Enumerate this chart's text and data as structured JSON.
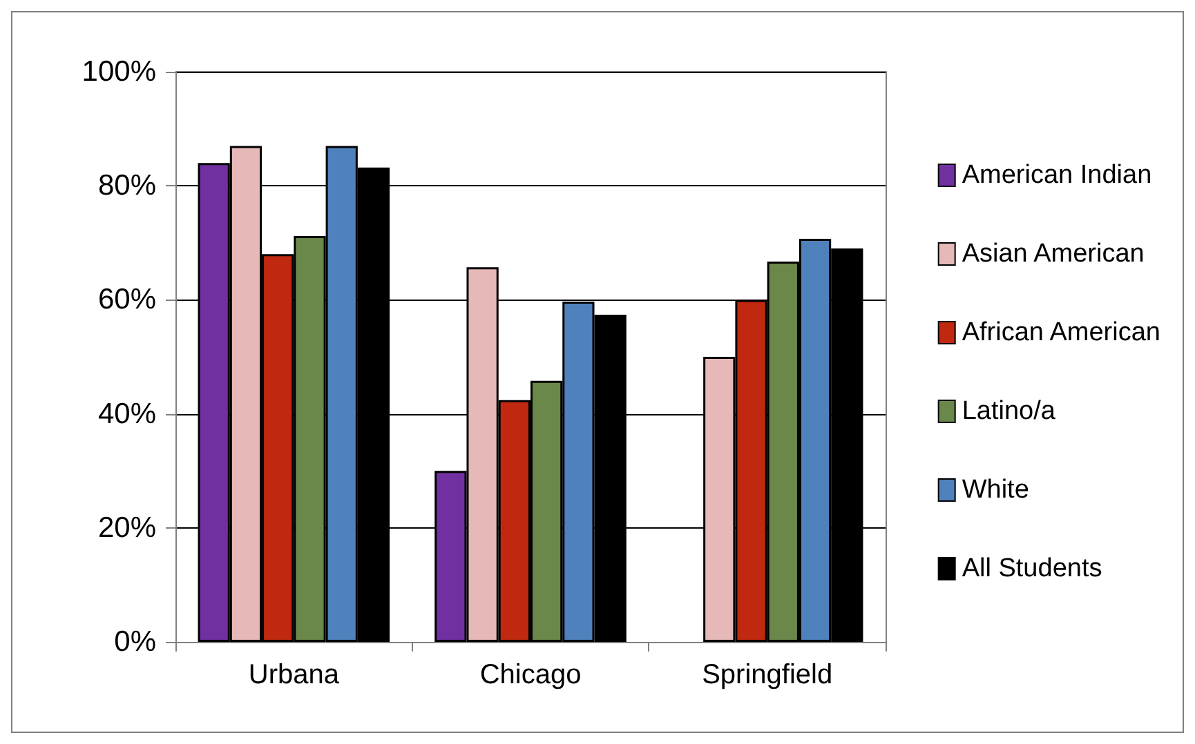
{
  "chart_data": {
    "type": "bar",
    "categories": [
      "Urbana",
      "Chicago",
      "Springfield"
    ],
    "series": [
      {
        "name": "American Indian",
        "color": "#7030a0",
        "values": [
          84,
          30,
          null
        ]
      },
      {
        "name": "Asian American",
        "color": "#e6b9b8",
        "values": [
          87,
          65.7,
          50
        ]
      },
      {
        "name": "African American",
        "color": "#c0290f",
        "values": [
          68,
          42.4,
          60
        ]
      },
      {
        "name": "Latino/a",
        "color": "#6a884a",
        "values": [
          71.2,
          45.8,
          66.7
        ]
      },
      {
        "name": "White",
        "color": "#4f81bd",
        "values": [
          87,
          59.7,
          70.7
        ]
      },
      {
        "name": "All Students",
        "color": "#000000",
        "values": [
          83.2,
          57.4,
          69
        ]
      }
    ],
    "ylim": [
      0,
      100
    ],
    "yticks": [
      {
        "value": 0,
        "label": "0%"
      },
      {
        "value": 20,
        "label": "20%"
      },
      {
        "value": 40,
        "label": "40%"
      },
      {
        "value": 60,
        "label": "60%"
      },
      {
        "value": 80,
        "label": "80%"
      },
      {
        "value": 100,
        "label": "100%"
      }
    ],
    "grid": "y",
    "legend": "right"
  }
}
